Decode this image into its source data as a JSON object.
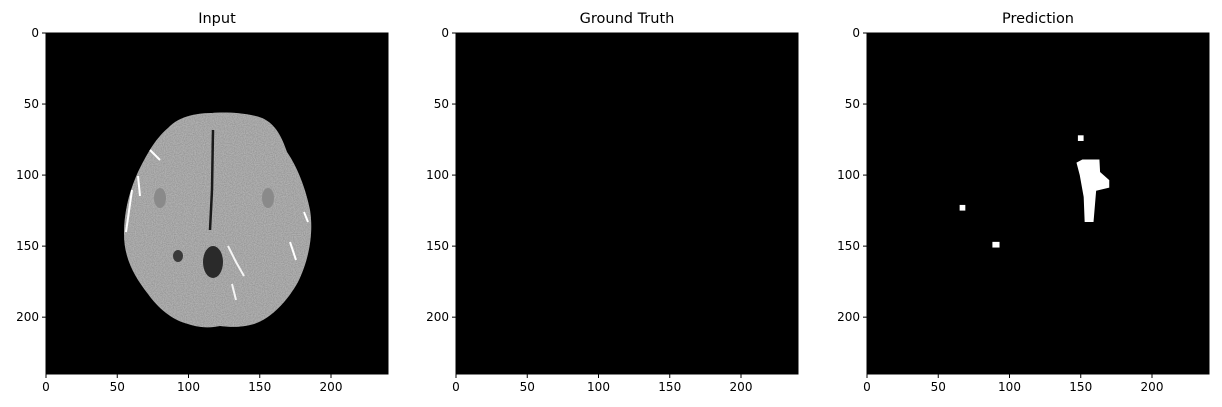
{
  "chart_data": [
    {
      "type": "heatmap",
      "title": "Input",
      "colormap": "gray",
      "image_size": [
        240,
        240
      ],
      "xlim": [
        0,
        240
      ],
      "ylim": [
        240,
        0
      ],
      "xticks": [
        0,
        50,
        100,
        150,
        200
      ],
      "yticks": [
        0,
        50,
        100,
        150,
        200
      ],
      "content": {
        "kind": "brain-mri-axial",
        "brain_extent": {
          "x": [
            52,
            187
          ],
          "y": [
            57,
            207
          ]
        },
        "background": "#000000",
        "tissue_color": "#b9b9b9"
      }
    },
    {
      "type": "heatmap",
      "title": "Ground Truth",
      "colormap": "gray",
      "image_size": [
        240,
        240
      ],
      "xlim": [
        0,
        240
      ],
      "ylim": [
        240,
        0
      ],
      "xticks": [
        0,
        50,
        100,
        150,
        200
      ],
      "yticks": [
        0,
        50,
        100,
        150,
        200
      ],
      "content": {
        "kind": "empty-mask",
        "background": "#000000"
      }
    },
    {
      "type": "heatmap",
      "title": "Prediction",
      "colormap": "gray",
      "image_size": [
        240,
        240
      ],
      "xlim": [
        0,
        240
      ],
      "ylim": [
        240,
        0
      ],
      "xticks": [
        0,
        50,
        100,
        150,
        200
      ],
      "yticks": [
        0,
        50,
        100,
        150,
        200
      ],
      "content": {
        "kind": "binary-mask",
        "background": "#000000",
        "foreground": "#ffffff",
        "regions": [
          {
            "x": [
              148,
              152
            ],
            "y": [
              72,
              76
            ]
          },
          {
            "x": [
              147,
              170
            ],
            "y": [
              89,
              133
            ]
          },
          {
            "x": [
              65,
              69
            ],
            "y": [
              121,
              125
            ]
          },
          {
            "x": [
              88,
              93
            ],
            "y": [
              147,
              151
            ]
          }
        ]
      }
    }
  ]
}
